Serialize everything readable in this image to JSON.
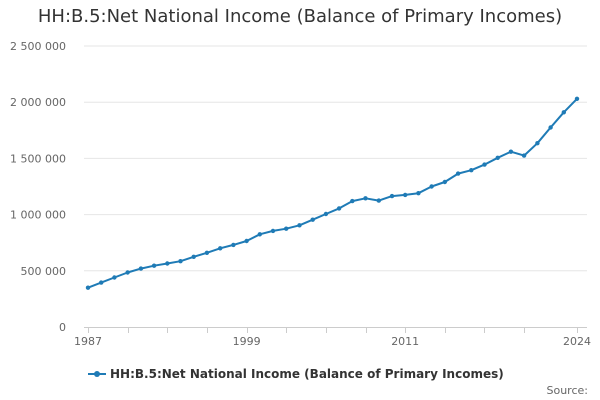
{
  "chart_data": {
    "type": "line",
    "title": "HH:B.5:Net National Income (Balance of Primary Incomes)",
    "xlabel": "",
    "ylabel": "",
    "x": [
      1987,
      1988,
      1989,
      1990,
      1991,
      1992,
      1993,
      1994,
      1995,
      1996,
      1997,
      1998,
      1999,
      2000,
      2001,
      2002,
      2003,
      2004,
      2005,
      2006,
      2007,
      2008,
      2009,
      2010,
      2011,
      2012,
      2013,
      2014,
      2015,
      2016,
      2017,
      2018,
      2019,
      2020,
      2021,
      2022,
      2023,
      2024
    ],
    "series": [
      {
        "name": "HH:B.5:Net National Income (Balance of Primary Incomes)",
        "color": "#1f7bb6",
        "values": [
          350000,
          395000,
          440000,
          485000,
          520000,
          545000,
          565000,
          585000,
          625000,
          660000,
          700000,
          730000,
          765000,
          825000,
          855000,
          875000,
          905000,
          955000,
          1005000,
          1055000,
          1120000,
          1145000,
          1125000,
          1165000,
          1175000,
          1190000,
          1250000,
          1290000,
          1365000,
          1395000,
          1445000,
          1505000,
          1560000,
          1525000,
          1635000,
          1775000,
          1910000,
          2030000
        ]
      }
    ],
    "xlim": [
      1987,
      2024
    ],
    "ylim": [
      0,
      2500000
    ],
    "x_ticks": [
      {
        "value": 1987,
        "label": "1987"
      },
      {
        "value": 1999,
        "label": "1999"
      },
      {
        "value": 2011,
        "label": "2011"
      },
      {
        "value": 2024,
        "label": "2024"
      }
    ],
    "x_minor_ticks": [
      1987,
      1990,
      1993,
      1996,
      1999,
      2002,
      2005,
      2008,
      2011,
      2014,
      2017,
      2020,
      2024
    ],
    "y_ticks": [
      {
        "value": 0,
        "label": "0"
      },
      {
        "value": 500000,
        "label": "500 000"
      },
      {
        "value": 1000000,
        "label": "1 000 000"
      },
      {
        "value": 1500000,
        "label": "1 500 000"
      },
      {
        "value": 2000000,
        "label": "2 000 000"
      },
      {
        "value": 2500000,
        "label": "2 500 000"
      }
    ],
    "grid": true,
    "legend": "bottom-left"
  },
  "footer": {
    "source_label": "Source:"
  },
  "colors": {
    "series": "#1f7bb6",
    "grid": "#e6e6e6",
    "axis": "#cccccc"
  }
}
